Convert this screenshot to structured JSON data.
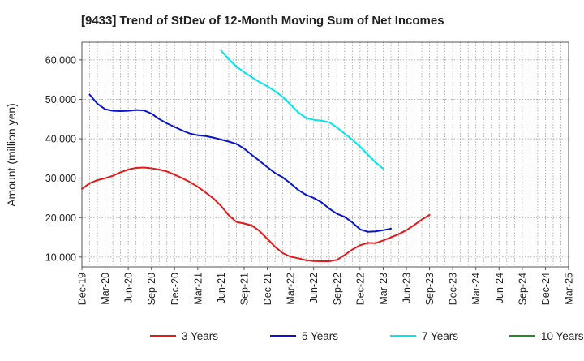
{
  "chart_data": {
    "type": "line",
    "title": "[9433]  Trend of StDev of 12-Month Moving Sum of Net Incomes",
    "ylabel": "Amount (million yen)",
    "xlabel": "",
    "ylim": [
      7500,
      64500
    ],
    "yticks": [
      10000,
      20000,
      30000,
      40000,
      50000,
      60000
    ],
    "ytick_labels": [
      "10,000",
      "20,000",
      "30,000",
      "40,000",
      "50,000",
      "60,000"
    ],
    "xtick_labels": [
      "Dec-19",
      "Mar-20",
      "Jun-20",
      "Sep-20",
      "Dec-20",
      "Mar-21",
      "Jun-21",
      "Sep-21",
      "Dec-21",
      "Mar-22",
      "Jun-22",
      "Sep-22",
      "Dec-22",
      "Mar-23",
      "Jun-23",
      "Sep-23",
      "Dec-23",
      "Mar-24",
      "Jun-24",
      "Sep-24",
      "Dec-24",
      "Mar-25"
    ],
    "grid": true,
    "legend_position": "bottom",
    "series": [
      {
        "name": "3 Years",
        "color": "#e31a1c",
        "start_index": 0,
        "values": [
          27300,
          28700,
          29500,
          30000,
          30600,
          31500,
          32200,
          32600,
          32700,
          32500,
          32200,
          31700,
          30900,
          30000,
          29000,
          27800,
          26400,
          24900,
          23000,
          20600,
          18900,
          18500,
          18000,
          16600,
          14600,
          12600,
          11000,
          10100,
          9700,
          9200,
          9000,
          8950,
          8950,
          9300,
          10500,
          11900,
          13000,
          13600,
          13500,
          14200,
          15000,
          15800,
          16800,
          18100,
          19500,
          20700
        ]
      },
      {
        "name": "5 Years",
        "color": "#0a14c8",
        "start_index": 1,
        "values": [
          51200,
          48900,
          47500,
          47100,
          47000,
          47100,
          47300,
          47200,
          46400,
          45000,
          43900,
          43000,
          42100,
          41300,
          40900,
          40700,
          40300,
          39800,
          39300,
          38700,
          37500,
          35900,
          34400,
          32800,
          31300,
          30200,
          28700,
          27000,
          25800,
          25000,
          23900,
          22300,
          21000,
          20200,
          18800,
          17000,
          16400,
          16500,
          16800,
          17200
        ]
      },
      {
        "name": "7 Years",
        "color": "#00e5ee",
        "start_index": 18,
        "values": [
          62400,
          60200,
          58300,
          56900,
          55600,
          54400,
          53300,
          52100,
          50600,
          48700,
          46700,
          45300,
          44800,
          44600,
          44200,
          42900,
          41300,
          39800,
          38000,
          36000,
          34000,
          32400
        ]
      },
      {
        "name": "10 Years",
        "color": "#228b22",
        "start_index": 0,
        "values": []
      }
    ]
  }
}
